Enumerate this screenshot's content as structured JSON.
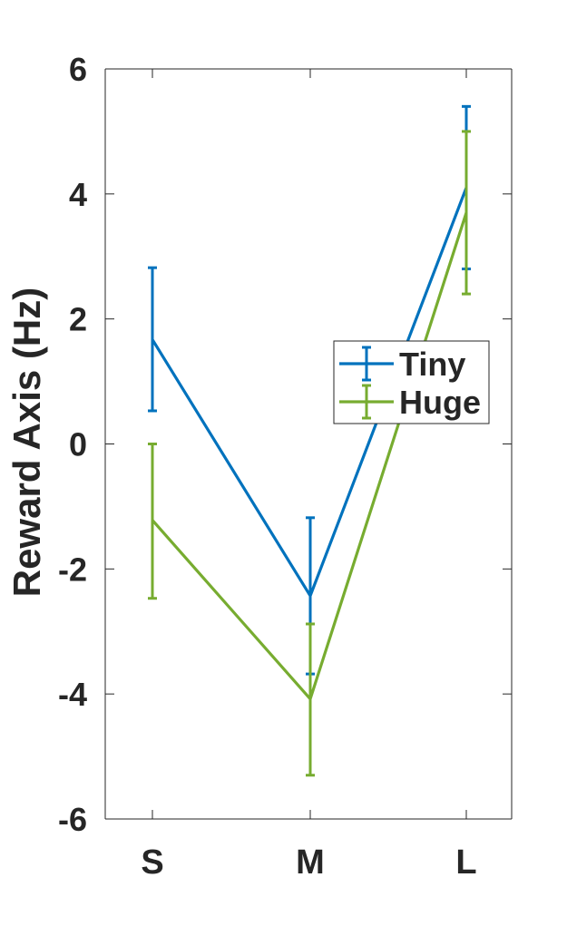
{
  "chart_data": {
    "type": "line",
    "title": "",
    "xlabel": "",
    "ylabel": "Reward Axis (Hz)",
    "categories": [
      "S",
      "M",
      "L"
    ],
    "ylim": [
      -6,
      6
    ],
    "yticks": [
      -6,
      -4,
      -2,
      0,
      2,
      4,
      6
    ],
    "ytick_labels": [
      "-6",
      "-4",
      "-2",
      "0",
      "2",
      "4",
      "6"
    ],
    "grid": false,
    "legend_position": "center-right",
    "series": [
      {
        "name": "Tiny",
        "color": "#0072BD",
        "values": [
          1.67,
          -2.43,
          4.1
        ],
        "err_low": [
          0.53,
          -3.68,
          2.8
        ],
        "err_high": [
          2.82,
          -1.18,
          5.4
        ]
      },
      {
        "name": "Huge",
        "color": "#77AC30",
        "values": [
          -1.22,
          -4.08,
          3.7
        ],
        "err_low": [
          -2.47,
          -5.3,
          2.4
        ],
        "err_high": [
          0.0,
          -2.88,
          5.0
        ]
      }
    ]
  }
}
